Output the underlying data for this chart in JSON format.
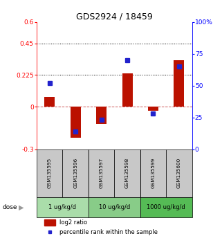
{
  "title": "GDS2924 / 18459",
  "samples": [
    "GSM135595",
    "GSM135596",
    "GSM135597",
    "GSM135598",
    "GSM135599",
    "GSM135600"
  ],
  "log2_ratio": [
    0.07,
    -0.22,
    -0.12,
    0.235,
    -0.025,
    0.33
  ],
  "percentile_rank": [
    52,
    14,
    23,
    70,
    28,
    65
  ],
  "ylim_left": [
    -0.3,
    0.6
  ],
  "ylim_right": [
    0,
    100
  ],
  "yticks_left": [
    -0.3,
    0,
    0.225,
    0.45,
    0.6
  ],
  "yticks_right": [
    0,
    25,
    50,
    75,
    100
  ],
  "ytick_left_labels": [
    "-0.3",
    "0",
    "0.225",
    "0.45",
    "0.6"
  ],
  "ytick_right_labels": [
    "0",
    "25",
    "50",
    "75",
    "100%"
  ],
  "hlines": [
    0.225,
    0.45
  ],
  "bar_color": "#bb1100",
  "dot_color": "#2222cc",
  "zero_line_color": "#cc5555",
  "sample_box_color": "#c8c8c8",
  "dose_colors": [
    "#aaddaa",
    "#88cc88",
    "#55bb55"
  ],
  "dose_labels": [
    "1 ug/kg/d",
    "10 ug/kg/d",
    "1000 ug/kg/d"
  ],
  "dose_ranges": [
    [
      -0.5,
      1.5
    ],
    [
      1.5,
      3.5
    ],
    [
      3.5,
      5.5
    ]
  ],
  "legend_bar_color": "#bb1100",
  "legend_dot_color": "#2222cc"
}
